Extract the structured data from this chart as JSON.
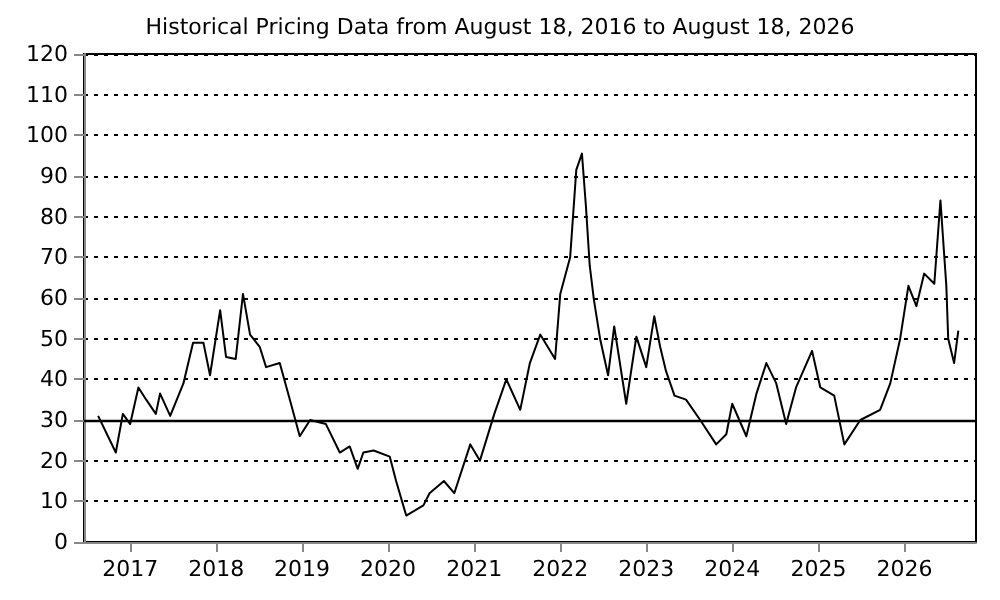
{
  "chart_data": {
    "type": "line",
    "title": "Historical Pricing Data from August 18, 2016 to August 18, 2026",
    "x": [
      "2016-08-18",
      "2016-11-01",
      "2016-12-01",
      "2017-01-01",
      "2017-02-05",
      "2017-03-10",
      "2017-04-20",
      "2017-05-08",
      "2017-06-20",
      "2017-08-15",
      "2017-09-25",
      "2017-11-08",
      "2017-12-06",
      "2018-01-18",
      "2018-02-12",
      "2018-03-25",
      "2018-04-25",
      "2018-05-25",
      "2018-07-05",
      "2018-08-01",
      "2018-09-28",
      "2018-11-10",
      "2018-12-22",
      "2019-02-04",
      "2019-04-12",
      "2019-06-10",
      "2019-07-22",
      "2019-08-25",
      "2019-09-18",
      "2019-11-01",
      "2020-01-08",
      "2020-02-04",
      "2020-03-18",
      "2020-05-30",
      "2020-06-25",
      "2020-08-25",
      "2020-10-08",
      "2020-12-15",
      "2021-01-25",
      "2021-03-27",
      "2021-05-17",
      "2021-07-15",
      "2021-08-25",
      "2021-10-08",
      "2021-12-10",
      "2022-01-01",
      "2022-02-12",
      "2022-03-10",
      "2022-04-03",
      "2022-04-20",
      "2022-05-06",
      "2022-05-24",
      "2022-06-19",
      "2022-07-23",
      "2022-08-18",
      "2022-10-08",
      "2022-11-20",
      "2023-01-01",
      "2023-02-04",
      "2023-03-01",
      "2023-03-26",
      "2023-05-01",
      "2023-06-19",
      "2023-08-18",
      "2023-10-25",
      "2023-12-07",
      "2024-01-01",
      "2024-03-01",
      "2024-04-13",
      "2024-05-25",
      "2024-07-06",
      "2024-08-17",
      "2024-09-28",
      "2024-12-05",
      "2025-01-09",
      "2025-03-09",
      "2025-04-21",
      "2025-06-28",
      "2025-09-20",
      "2025-11-02",
      "2025-12-14",
      "2026-01-18",
      "2026-02-21",
      "2026-03-26",
      "2026-05-08",
      "2026-06-03",
      "2026-06-28",
      "2026-07-06",
      "2026-07-31",
      "2026-08-18"
    ],
    "series": [
      {
        "color": "#000000",
        "values": [
          31,
          22,
          31.5,
          29,
          38,
          35,
          31.5,
          36.5,
          31,
          39,
          49,
          49,
          41,
          57,
          45.5,
          45,
          61,
          51,
          48,
          43,
          44,
          35,
          26,
          30,
          29,
          22,
          23.5,
          18,
          22,
          22.5,
          21,
          15,
          6.5,
          9,
          12,
          15,
          12,
          24,
          20,
          31.5,
          40,
          32.5,
          44,
          51,
          45,
          61,
          70,
          91.5,
          95.5,
          82.5,
          68,
          59.5,
          50,
          41,
          53,
          34,
          50.5,
          43,
          55.5,
          48,
          42,
          36,
          35,
          30,
          24,
          26.5,
          34,
          26,
          36.5,
          44,
          39,
          29,
          38,
          47,
          38,
          36,
          24,
          30,
          32.5,
          39,
          50,
          63,
          58,
          66,
          63.5,
          84,
          63,
          50,
          44,
          52
        ]
      }
    ],
    "xlim": [
      "2016-06-19",
      "2026-11-01"
    ],
    "xticks": [
      "2017",
      "2018",
      "2019",
      "2020",
      "2021",
      "2022",
      "2023",
      "2024",
      "2025",
      "2026"
    ],
    "ylim": [
      0,
      120
    ],
    "yticks": [
      0,
      10,
      20,
      30,
      40,
      50,
      60,
      70,
      80,
      90,
      100,
      110,
      120
    ],
    "grid": "y",
    "line_style": "solid",
    "marker": "none",
    "ref_lines": [
      {
        "axis": "y",
        "value": 30,
        "color": "#000000",
        "line_style": "solid"
      }
    ]
  }
}
